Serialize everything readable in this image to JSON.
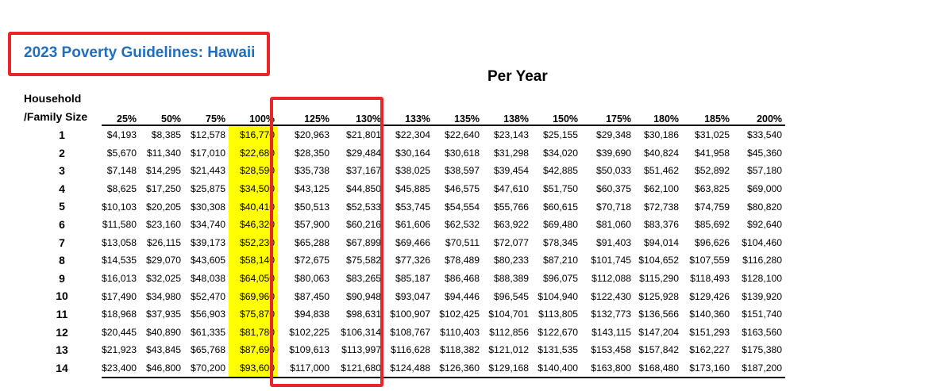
{
  "title": "2023 Poverty Guidelines: Hawaii",
  "subtitle": "Per Year",
  "row_header_line1": "Household",
  "row_header_line2": "/Family Size",
  "columns": [
    "25%",
    "50%",
    "75%",
    "100%",
    "125%",
    "130%",
    "133%",
    "135%",
    "138%",
    "150%",
    "175%",
    "180%",
    "185%",
    "200%"
  ],
  "highlight_column": "100%",
  "highlight_color": "#ffff00",
  "annotation_color": "#e8262a",
  "title_color": "#1f6fbf",
  "rows": [
    {
      "size": "1",
      "values": [
        "$4,193",
        "$8,385",
        "$12,578",
        "$16,770",
        "$20,963",
        "$21,801",
        "$22,304",
        "$22,640",
        "$23,143",
        "$25,155",
        "$29,348",
        "$30,186",
        "$31,025",
        "$33,540"
      ]
    },
    {
      "size": "2",
      "values": [
        "$5,670",
        "$11,340",
        "$17,010",
        "$22,680",
        "$28,350",
        "$29,484",
        "$30,164",
        "$30,618",
        "$31,298",
        "$34,020",
        "$39,690",
        "$40,824",
        "$41,958",
        "$45,360"
      ]
    },
    {
      "size": "3",
      "values": [
        "$7,148",
        "$14,295",
        "$21,443",
        "$28,590",
        "$35,738",
        "$37,167",
        "$38,025",
        "$38,597",
        "$39,454",
        "$42,885",
        "$50,033",
        "$51,462",
        "$52,892",
        "$57,180"
      ]
    },
    {
      "size": "4",
      "values": [
        "$8,625",
        "$17,250",
        "$25,875",
        "$34,500",
        "$43,125",
        "$44,850",
        "$45,885",
        "$46,575",
        "$47,610",
        "$51,750",
        "$60,375",
        "$62,100",
        "$63,825",
        "$69,000"
      ]
    },
    {
      "size": "5",
      "values": [
        "$10,103",
        "$20,205",
        "$30,308",
        "$40,410",
        "$50,513",
        "$52,533",
        "$53,745",
        "$54,554",
        "$55,766",
        "$60,615",
        "$70,718",
        "$72,738",
        "$74,759",
        "$80,820"
      ]
    },
    {
      "size": "6",
      "values": [
        "$11,580",
        "$23,160",
        "$34,740",
        "$46,320",
        "$57,900",
        "$60,216",
        "$61,606",
        "$62,532",
        "$63,922",
        "$69,480",
        "$81,060",
        "$83,376",
        "$85,692",
        "$92,640"
      ]
    },
    {
      "size": "7",
      "values": [
        "$13,058",
        "$26,115",
        "$39,173",
        "$52,230",
        "$65,288",
        "$67,899",
        "$69,466",
        "$70,511",
        "$72,077",
        "$78,345",
        "$91,403",
        "$94,014",
        "$96,626",
        "$104,460"
      ]
    },
    {
      "size": "8",
      "values": [
        "$14,535",
        "$29,070",
        "$43,605",
        "$58,140",
        "$72,675",
        "$75,582",
        "$77,326",
        "$78,489",
        "$80,233",
        "$87,210",
        "$101,745",
        "$104,652",
        "$107,559",
        "$116,280"
      ]
    },
    {
      "size": "9",
      "values": [
        "$16,013",
        "$32,025",
        "$48,038",
        "$64,050",
        "$80,063",
        "$83,265",
        "$85,187",
        "$86,468",
        "$88,389",
        "$96,075",
        "$112,088",
        "$115,290",
        "$118,493",
        "$128,100"
      ]
    },
    {
      "size": "10",
      "values": [
        "$17,490",
        "$34,980",
        "$52,470",
        "$69,960",
        "$87,450",
        "$90,948",
        "$93,047",
        "$94,446",
        "$96,545",
        "$104,940",
        "$122,430",
        "$125,928",
        "$129,426",
        "$139,920"
      ]
    },
    {
      "size": "11",
      "values": [
        "$18,968",
        "$37,935",
        "$56,903",
        "$75,870",
        "$94,838",
        "$98,631",
        "$100,907",
        "$102,425",
        "$104,701",
        "$113,805",
        "$132,773",
        "$136,566",
        "$140,360",
        "$151,740"
      ]
    },
    {
      "size": "12",
      "values": [
        "$20,445",
        "$40,890",
        "$61,335",
        "$81,780",
        "$102,225",
        "$106,314",
        "$108,767",
        "$110,403",
        "$112,856",
        "$122,670",
        "$143,115",
        "$147,204",
        "$151,293",
        "$163,560"
      ]
    },
    {
      "size": "13",
      "values": [
        "$21,923",
        "$43,845",
        "$65,768",
        "$87,690",
        "$109,613",
        "$113,997",
        "$116,628",
        "$118,382",
        "$121,012",
        "$131,535",
        "$153,458",
        "$157,842",
        "$162,227",
        "$175,380"
      ]
    },
    {
      "size": "14",
      "values": [
        "$23,400",
        "$46,800",
        "$70,200",
        "$93,600",
        "$117,000",
        "$121,680",
        "$124,488",
        "$126,360",
        "$129,168",
        "$140,400",
        "$163,800",
        "$168,480",
        "$173,160",
        "$187,200"
      ]
    }
  ]
}
